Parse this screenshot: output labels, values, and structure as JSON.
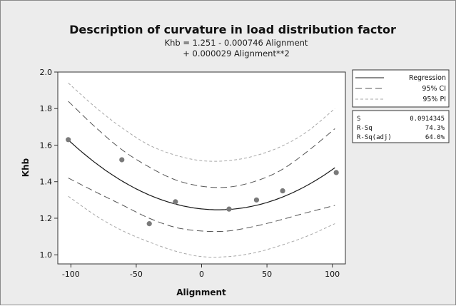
{
  "chart_data": {
    "type": "scatter",
    "title": "Description of curvature in load distribution factor",
    "subtitle_lines": [
      "Khb =  1.251 - 0.000746 Alignment",
      "+ 0.000029 Alignment**2"
    ],
    "xlabel": "Alignment",
    "ylabel": "Khb",
    "xlim": [
      -110,
      110
    ],
    "ylim": [
      0.95,
      2.0
    ],
    "x_ticks": [
      -100,
      -50,
      0,
      50,
      100
    ],
    "x_tick_labels": [
      "-100",
      "-50",
      "0",
      "50",
      "100"
    ],
    "y_ticks": [
      1.0,
      1.2,
      1.4,
      1.6,
      1.8,
      2.0
    ],
    "y_tick_labels": [
      "1.0",
      "1.2",
      "1.4",
      "1.6",
      "1.8",
      "2.0"
    ],
    "points": [
      {
        "x": -102,
        "y": 1.63
      },
      {
        "x": -61,
        "y": 1.52
      },
      {
        "x": -40,
        "y": 1.17
      },
      {
        "x": -20,
        "y": 1.29
      },
      {
        "x": 21,
        "y": 1.25
      },
      {
        "x": 42,
        "y": 1.3
      },
      {
        "x": 62,
        "y": 1.35
      },
      {
        "x": 103,
        "y": 1.45
      }
    ],
    "regression": {
      "intercept": 1.251,
      "linear": -0.000746,
      "quadratic": 2.9e-05,
      "x_range": [
        -102,
        102
      ]
    },
    "ci_95": {
      "x": [
        -102,
        -80,
        -60,
        -40,
        -20,
        0,
        20,
        40,
        60,
        80,
        102
      ],
      "upper": [
        1.84,
        1.69,
        1.57,
        1.48,
        1.41,
        1.375,
        1.37,
        1.4,
        1.46,
        1.56,
        1.69
      ],
      "lower": [
        1.42,
        1.34,
        1.27,
        1.2,
        1.15,
        1.13,
        1.13,
        1.155,
        1.19,
        1.23,
        1.27
      ]
    },
    "pi_95": {
      "x": [
        -102,
        -80,
        -60,
        -40,
        -20,
        0,
        20,
        40,
        60,
        80,
        102
      ],
      "upper": [
        1.94,
        1.8,
        1.69,
        1.6,
        1.545,
        1.515,
        1.515,
        1.54,
        1.59,
        1.67,
        1.8
      ],
      "lower": [
        1.32,
        1.21,
        1.13,
        1.07,
        1.02,
        0.99,
        0.99,
        1.01,
        1.05,
        1.1,
        1.17
      ]
    },
    "legend": {
      "placement": "right",
      "entries": [
        {
          "label": "Regression",
          "style": "solid"
        },
        {
          "label": "95% CI",
          "style": "long-dash"
        },
        {
          "label": "95% PI",
          "style": "short-dash"
        }
      ]
    },
    "stats": [
      {
        "label": "S",
        "value": "0.0914345"
      },
      {
        "label": "R-Sq",
        "value": "74.3%"
      },
      {
        "label": "R-Sq(adj)",
        "value": "64.0%"
      }
    ],
    "colors": {
      "background": "#ececec",
      "plot_area": "#ffffff",
      "point": "#7a7a7a",
      "regression": "#1a1a1a",
      "ci": "#555555",
      "pi": "#a8a8a8"
    }
  }
}
